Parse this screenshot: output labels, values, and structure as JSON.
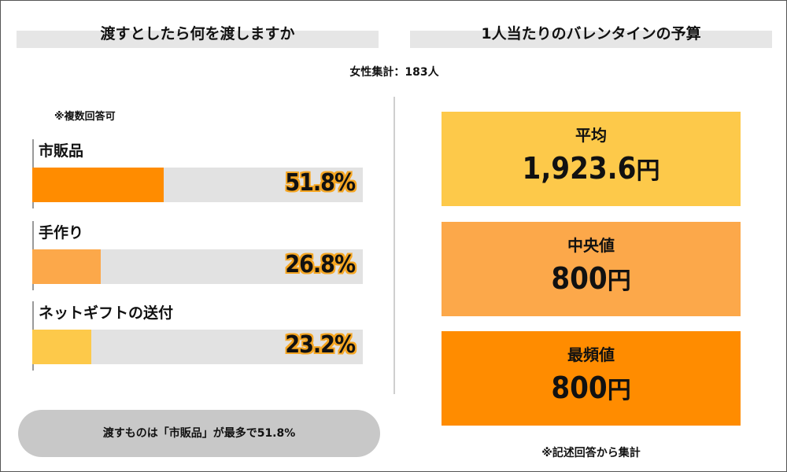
{
  "left_title": "渡すとしたら何を渡しますか",
  "right_title": "1人当たりのバレンタインの予算",
  "respondents": "女性集計：183人",
  "multi_answer_note": "※複数回答可",
  "summary": "渡すものは「市販品」が最多で51.8%",
  "free_answer_note": "※記述回答から集計",
  "chart_data": [
    {
      "type": "bar",
      "orientation": "horizontal",
      "title": "渡すとしたら何を渡しますか",
      "categories": [
        "市販品",
        "手作り",
        "ネットギフトの送付"
      ],
      "values": [
        51.8,
        26.8,
        23.2
      ],
      "value_labels": [
        "51.8%",
        "26.8%",
        "23.2%"
      ],
      "unit": "%",
      "xlim": [
        0,
        130
      ],
      "colors": [
        "#ff8c00",
        "#fca84a",
        "#fdc94a"
      ],
      "track_color": "#e2e2e2"
    },
    {
      "type": "table",
      "title": "1人当たりのバレンタインの予算",
      "items": [
        {
          "label": "平均",
          "value": "1,923.6",
          "unit": "円",
          "color": "#fdc94a"
        },
        {
          "label": "中央値",
          "value": "800",
          "unit": "円",
          "color": "#fca84a"
        },
        {
          "label": "最頻値",
          "value": "800",
          "unit": "円",
          "color": "#ff8c00"
        }
      ]
    }
  ]
}
